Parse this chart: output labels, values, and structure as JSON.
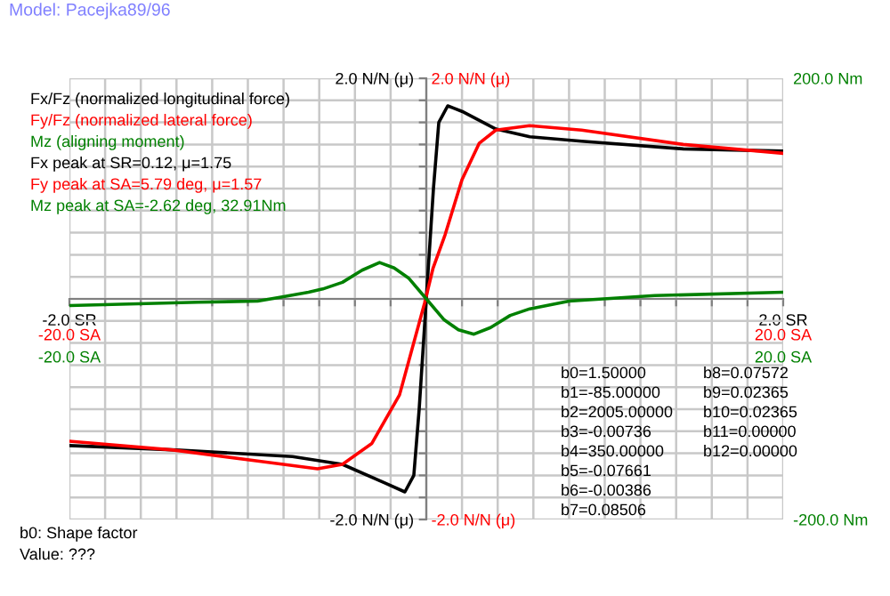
{
  "chart_data": [
    {
      "type": "line",
      "title": "Model: Pacejka89/96",
      "xlim": [
        -2,
        2
      ],
      "xticks": [
        {
          "value": -2,
          "label": "-2.0 SR"
        },
        {
          "value": -1.8,
          "label": null
        },
        {
          "value": -1.6,
          "label": null
        },
        {
          "value": -1.4,
          "label": null
        },
        {
          "value": -1.2,
          "label": null
        },
        {
          "value": -1,
          "label": null
        },
        {
          "value": -0.8,
          "label": null
        },
        {
          "value": -0.6,
          "label": null
        },
        {
          "value": -0.4,
          "label": null
        },
        {
          "value": -0.2,
          "label": null
        },
        {
          "value": 0,
          "label": null
        },
        {
          "value": 0.2,
          "label": null
        },
        {
          "value": 0.4,
          "label": null
        },
        {
          "value": 0.6,
          "label": null
        },
        {
          "value": 0.8,
          "label": null
        },
        {
          "value": 1,
          "label": null
        },
        {
          "value": 1.2,
          "label": null
        },
        {
          "value": 1.4,
          "label": null
        },
        {
          "value": 1.6,
          "label": null
        },
        {
          "value": 1.8,
          "label": null
        },
        {
          "value": 2,
          "label": "2.0 SR"
        }
      ],
      "ylim": [
        -2,
        2
      ],
      "yticks": [
        {
          "value": -2,
          "label": "-2.0 N/N (μ)"
        },
        {
          "value": -1.8,
          "label": null
        },
        {
          "value": -1.6,
          "label": null
        },
        {
          "value": -1.4,
          "label": null
        },
        {
          "value": -1.2,
          "label": null
        },
        {
          "value": -1,
          "label": null
        },
        {
          "value": -0.8,
          "label": null
        },
        {
          "value": -0.6,
          "label": null
        },
        {
          "value": -0.4,
          "label": null
        },
        {
          "value": -0.2,
          "label": null
        },
        {
          "value": 0,
          "label": null
        },
        {
          "value": 0.2,
          "label": null
        },
        {
          "value": 0.4,
          "label": null
        },
        {
          "value": 0.6,
          "label": null
        },
        {
          "value": 0.8,
          "label": null
        },
        {
          "value": 1,
          "label": null
        },
        {
          "value": 1.2,
          "label": null
        },
        {
          "value": 1.4,
          "label": null
        },
        {
          "value": 1.6,
          "label": null
        },
        {
          "value": 1.8,
          "label": null
        },
        {
          "value": 2,
          "label": "2.0 N/N (μ)"
        }
      ],
      "grid": true,
      "legend": "top left",
      "marker": "none",
      "line_style": "solid",
      "series": [
        {
          "name": "Fx/Fz (normalized longitudinal force)",
          "color": "#000000",
          "x": [
            -2.0,
            -1.4,
            -0.75,
            -0.47,
            -0.23,
            -0.12,
            -0.07,
            -0.04,
            -0.02,
            0,
            0.02,
            0.04,
            0.07,
            0.12,
            0.2,
            0.39,
            0.58,
            0.87,
            1.44,
            2.0
          ],
          "values": [
            -1.33,
            -1.37,
            -1.43,
            -1.5,
            -1.67,
            -1.75,
            -1.6,
            -1.0,
            -0.5,
            0,
            0.5,
            1.0,
            1.6,
            1.75,
            1.7,
            1.54,
            1.47,
            1.43,
            1.36,
            1.34
          ]
        }
      ],
      "annotations": [
        "Fx peak at SR=0.12, μ=1.75",
        "b0=1.50000",
        "b1=-85.00000",
        "b2=2005.00000",
        "b3=-0.00736",
        "b4=350.00000",
        "b5=-0.07661",
        "b6=-0.00386",
        "b7=0.08506",
        "b8=0.07572",
        "b9=0.02365",
        "b10=0.02365",
        "b11=0.00000",
        "b12=0.00000",
        "b0: Shape factor",
        "Value: ???"
      ]
    },
    {
      "type": "line",
      "xlim": [
        -20,
        20
      ],
      "xticks": [
        {
          "value": -20,
          "label": "-20.0 SA"
        },
        {
          "value": 20,
          "label": "20.0 SA"
        }
      ],
      "ylim": [
        -2,
        2
      ],
      "yticks": [
        {
          "value": -2,
          "label": "-2.0 N/N (μ)"
        },
        {
          "value": 2,
          "label": "2.0 N/N (μ)"
        }
      ],
      "legend": "top left",
      "marker": "none",
      "line_style": "solid",
      "series": [
        {
          "name": "Fy/Fz (normalized lateral force)",
          "color": "#ff0000",
          "x": [
            -20,
            -14.2,
            -9.45,
            -6.1,
            -4.7,
            -3.05,
            -1.5,
            -0.1,
            0.38,
            1.05,
            2.0,
            2.96,
            3.9,
            5.79,
            8.7,
            14.4,
            20
          ],
          "values": [
            -1.29,
            -1.37,
            -1.47,
            -1.54,
            -1.5,
            -1.31,
            -0.87,
            -0.04,
            0.28,
            0.58,
            1.08,
            1.41,
            1.53,
            1.57,
            1.53,
            1.4,
            1.32
          ]
        }
      ],
      "annotations": [
        "Fy peak at SA=5.79 deg, μ=1.57"
      ]
    },
    {
      "type": "line",
      "xlim": [
        -20,
        20
      ],
      "xticks": [
        {
          "value": -20,
          "label": "-20.0 SA"
        },
        {
          "value": 20,
          "label": "20.0 SA"
        }
      ],
      "ylim": [
        -200,
        200
      ],
      "yticks": [
        {
          "value": -200,
          "label": "-200.0 Nm"
        },
        {
          "value": 200,
          "label": "200.0 Nm"
        }
      ],
      "legend": "top left",
      "marker": "none",
      "line_style": "solid",
      "series": [
        {
          "name": "Mz (aligning moment)",
          "color": "#008000",
          "x": [
            -20,
            -12.8,
            -9.45,
            -8,
            -6.6,
            -5.8,
            -4.7,
            -3.6,
            -2.62,
            -1.8,
            -1.0,
            0,
            1.0,
            1.8,
            2.67,
            3.6,
            4.7,
            5.8,
            8,
            12.8,
            20
          ],
          "values": [
            -6,
            -3,
            -2,
            2,
            6,
            9,
            15,
            26,
            33,
            28,
            19,
            0,
            -19,
            -28,
            -32,
            -26,
            -15,
            -9,
            -2,
            3,
            6
          ]
        }
      ],
      "annotations": [
        "Mz peak at SA=-2.62 deg, 32.91Nm"
      ]
    }
  ]
}
